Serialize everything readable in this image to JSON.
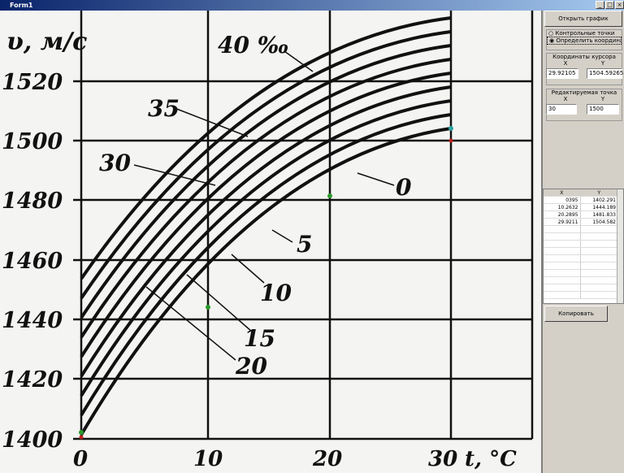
{
  "window": {
    "title": "Form1"
  },
  "graph": {
    "y_axis_label": "υ, м/с",
    "x_axis_label": "t, °C",
    "yticks": [
      "1400",
      "1420",
      "1440",
      "1460",
      "1480",
      "1500",
      "1520"
    ],
    "xticks": [
      "0",
      "10",
      "20",
      "30"
    ],
    "curve_labels": [
      "40 ‰",
      "35",
      "30",
      "0",
      "5",
      "10",
      "15",
      "20"
    ]
  },
  "panel": {
    "open_button": "Открыть график",
    "radio_options": [
      "Контрольные точки",
      "Определить координаты"
    ],
    "cursor_group": "Координаты курсора",
    "cursor_x_label": "X",
    "cursor_y_label": "Y",
    "cursor_x": "29.92105",
    "cursor_y": "1504.59265",
    "edit_group": "Редактируемая точка",
    "edit_x_label": "X",
    "edit_y_label": "Y",
    "edit_x": "30",
    "edit_y": "1500",
    "table": {
      "headers": [
        "X",
        "Y"
      ],
      "rows": [
        [
          "0395",
          "1402.291"
        ],
        [
          "10.2632",
          "1444.189"
        ],
        [
          "20.2895",
          "1481.833"
        ],
        [
          "29.9211",
          "1504.582"
        ]
      ]
    },
    "copy_button": "Копировать"
  }
}
